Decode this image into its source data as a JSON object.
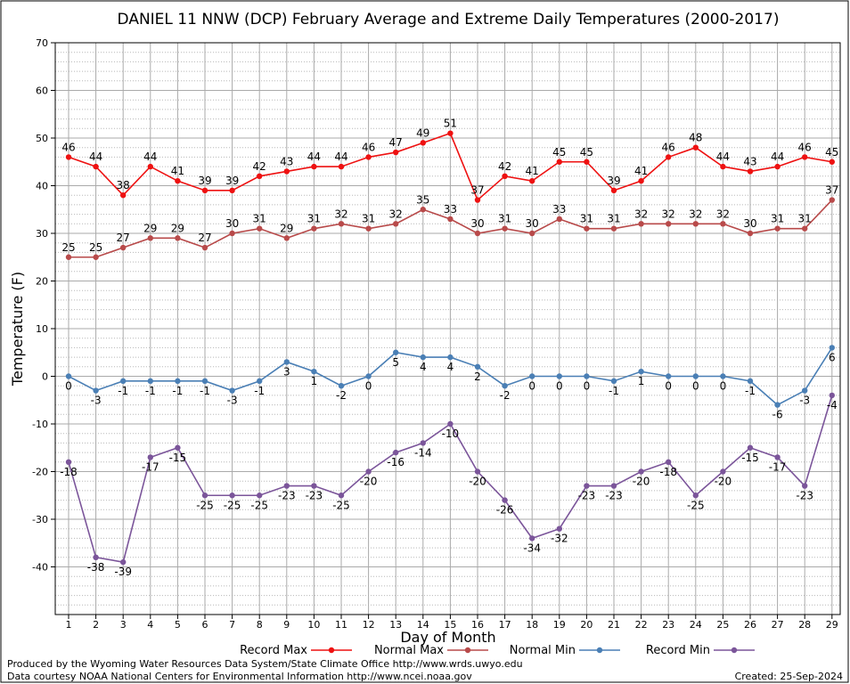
{
  "chart_data": {
    "type": "line",
    "title": "DANIEL 11 NNW (DCP) February Average and Extreme Daily Temperatures (2000-2017)",
    "xlabel": "Day of Month",
    "ylabel": "Temperature (F)",
    "ylim": [
      -50,
      70
    ],
    "yticks": [
      -40,
      -30,
      -20,
      -10,
      0,
      10,
      20,
      30,
      40,
      50,
      60,
      70
    ],
    "x": [
      1,
      2,
      3,
      4,
      5,
      6,
      7,
      8,
      9,
      10,
      11,
      12,
      13,
      14,
      15,
      16,
      17,
      18,
      19,
      20,
      21,
      22,
      23,
      24,
      25,
      26,
      27,
      28,
      29
    ],
    "grid": true,
    "legend_position": "bottom",
    "series": [
      {
        "name": "Record Max",
        "color": "#ee1111",
        "label_pos": "above",
        "values": [
          46,
          44,
          38,
          44,
          41,
          39,
          39,
          42,
          43,
          44,
          44,
          46,
          47,
          49,
          51,
          37,
          42,
          41,
          45,
          45,
          39,
          41,
          46,
          48,
          44,
          43,
          44,
          46,
          45
        ]
      },
      {
        "name": "Normal Max",
        "color": "#b84a4a",
        "label_pos": "above",
        "values": [
          25,
          25,
          27,
          29,
          29,
          27,
          30,
          31,
          29,
          31,
          32,
          31,
          32,
          35,
          33,
          30,
          31,
          30,
          33,
          31,
          31,
          32,
          32,
          32,
          32,
          30,
          31,
          31,
          37
        ]
      },
      {
        "name": "Normal Min",
        "color": "#4a7fb5",
        "label_pos": "below",
        "values": [
          0,
          -3,
          -1,
          -1,
          -1,
          -1,
          -3,
          -1,
          3,
          1,
          -2,
          0,
          5,
          4,
          4,
          2,
          -2,
          0,
          0,
          0,
          -1,
          1,
          0,
          0,
          0,
          -1,
          -6,
          -3,
          6
        ]
      },
      {
        "name": "Record Min",
        "color": "#7b559a",
        "label_pos": "below",
        "values": [
          -18,
          -38,
          -39,
          -17,
          -15,
          -25,
          -25,
          -25,
          -23,
          -23,
          -25,
          -20,
          -16,
          -14,
          -10,
          -20,
          -26,
          -34,
          -32,
          -23,
          -23,
          -20,
          -18,
          -25,
          -20,
          -15,
          -17,
          -23,
          -4
        ]
      }
    ]
  },
  "footer": {
    "produced": "Produced by the Wyoming Water Resources Data System/State Climate Office http://www.wrds.uwyo.edu",
    "courtesy": "Data courtesy NOAA National Centers for Environmental Information http://www.ncei.noaa.gov",
    "created": "Created:  25-Sep-2024"
  }
}
